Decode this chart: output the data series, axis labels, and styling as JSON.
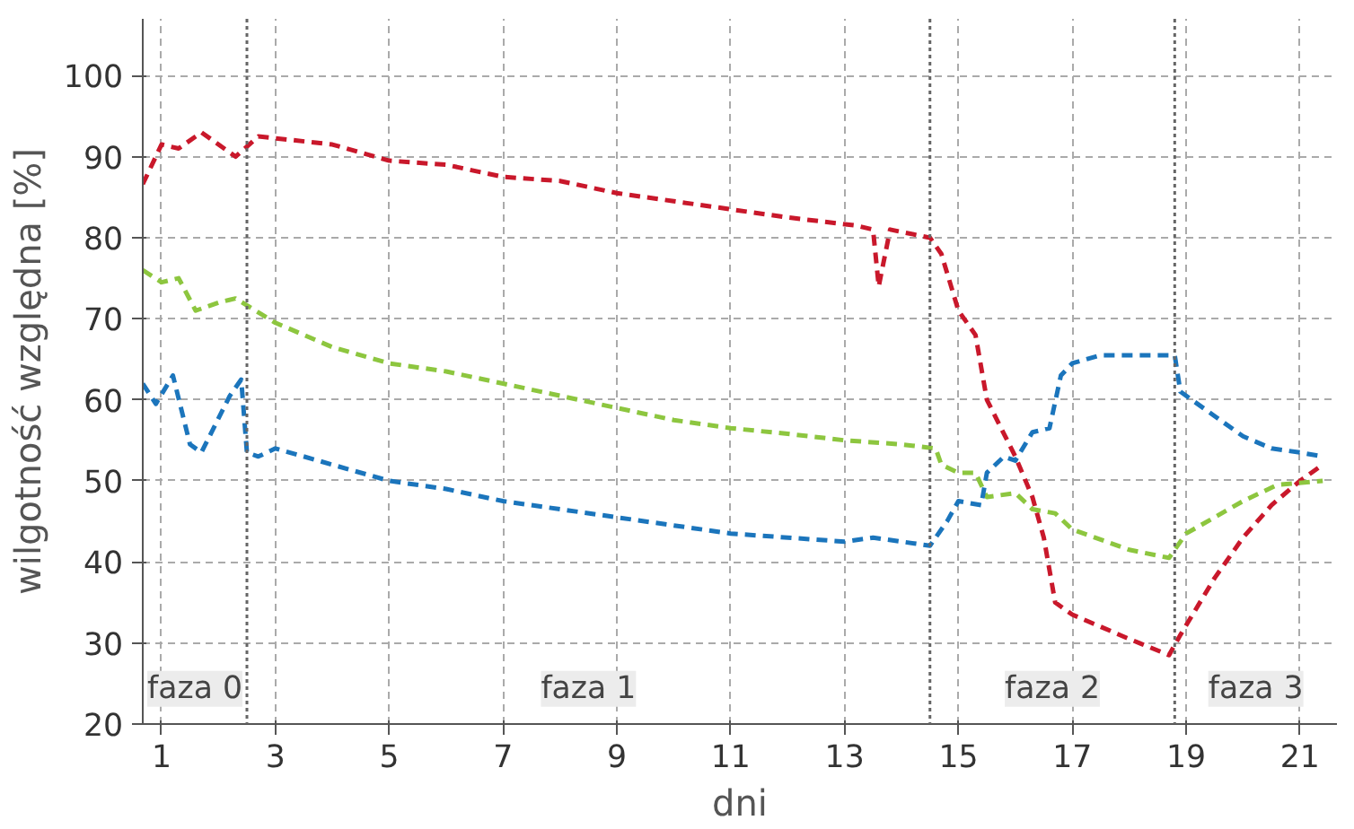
{
  "chart_data": {
    "type": "line",
    "xlabel": "dni",
    "ylabel": "wilgotność względna [%]",
    "xlim": [
      0.67,
      21.65
    ],
    "ylim": [
      20,
      107
    ],
    "xticks": [
      1,
      3,
      5,
      7,
      9,
      11,
      13,
      15,
      17,
      19,
      21
    ],
    "yticks": [
      20,
      30,
      40,
      50,
      60,
      70,
      80,
      90,
      100
    ],
    "grid": true,
    "marker": "none",
    "line_style": "dashed",
    "series": [
      {
        "color": "#c9182b",
        "x": [
          0.67,
          1,
          1.3,
          1.7,
          2.3,
          2.7,
          4,
          5,
          6,
          7,
          8,
          9,
          10,
          11,
          12,
          13.2,
          13.5,
          13.6,
          13.8,
          14.5,
          14.7,
          15,
          15.3,
          15.5,
          16,
          16.3,
          16.5,
          16.7,
          17,
          18,
          18.7,
          18.9,
          19.5,
          20,
          20.5,
          21,
          21.4
        ],
        "values": [
          86.6,
          91.5,
          91,
          93,
          90,
          92.5,
          91.5,
          89.5,
          89,
          87.5,
          87,
          85.5,
          84.5,
          83.5,
          82.5,
          81.5,
          81,
          74,
          81,
          80,
          78,
          71,
          68,
          60,
          53,
          48,
          43,
          35,
          33.5,
          30.5,
          28.5,
          31,
          38,
          43,
          47,
          50,
          52
        ]
      },
      {
        "color": "#8dc63f",
        "x": [
          0.67,
          1,
          1.3,
          1.6,
          2,
          2.3,
          3,
          4,
          5,
          6,
          7,
          8,
          9,
          10,
          11,
          12,
          13,
          14,
          14.6,
          14.7,
          15,
          15.3,
          15.5,
          16,
          16.3,
          16.7,
          17,
          18,
          18.7,
          19,
          20,
          20.6,
          21.4
        ],
        "values": [
          76,
          74.5,
          75,
          71,
          72,
          72.5,
          69.5,
          66.5,
          64.5,
          63.5,
          62,
          60.5,
          59,
          57.5,
          56.5,
          55.8,
          55,
          54.5,
          54,
          52,
          51,
          51,
          48,
          48.5,
          46.5,
          46,
          44,
          41.5,
          40.5,
          43.5,
          47.5,
          49.5,
          50
        ]
      },
      {
        "color": "#1b75bc",
        "x": [
          0.67,
          0.9,
          1.2,
          1.5,
          1.7,
          2.2,
          2.4,
          2.5,
          2.7,
          3,
          4,
          5,
          6,
          7,
          8,
          9,
          10,
          11,
          12,
          13,
          13.5,
          14,
          14.5,
          14.8,
          15,
          15.4,
          15.5,
          15.8,
          16,
          16.3,
          16.6,
          16.8,
          17,
          17.5,
          18.8,
          18.9,
          19.5,
          20,
          20.5,
          21,
          21.4
        ],
        "values": [
          62,
          59.5,
          63,
          54.5,
          53.5,
          60.5,
          62.5,
          53.5,
          53,
          54,
          52,
          50,
          49,
          47.5,
          46.5,
          45.5,
          44.5,
          43.5,
          43,
          42.5,
          43,
          42.5,
          42,
          45,
          47.5,
          47,
          51,
          53,
          52.5,
          56,
          56.5,
          63,
          64.5,
          65.5,
          65.5,
          61,
          58,
          55.5,
          54,
          53.5,
          53
        ]
      }
    ],
    "ref_lines": [
      {
        "axis": "x",
        "value": 2.5,
        "color": "#666666",
        "line_style": "dotted"
      },
      {
        "axis": "x",
        "value": 14.5,
        "color": "#666666",
        "line_style": "dotted"
      },
      {
        "axis": "x",
        "value": 18.8,
        "color": "#666666",
        "line_style": "dotted"
      }
    ],
    "annotations": [
      "faza 0",
      "faza 1",
      "faza 2",
      "faza 3"
    ]
  }
}
